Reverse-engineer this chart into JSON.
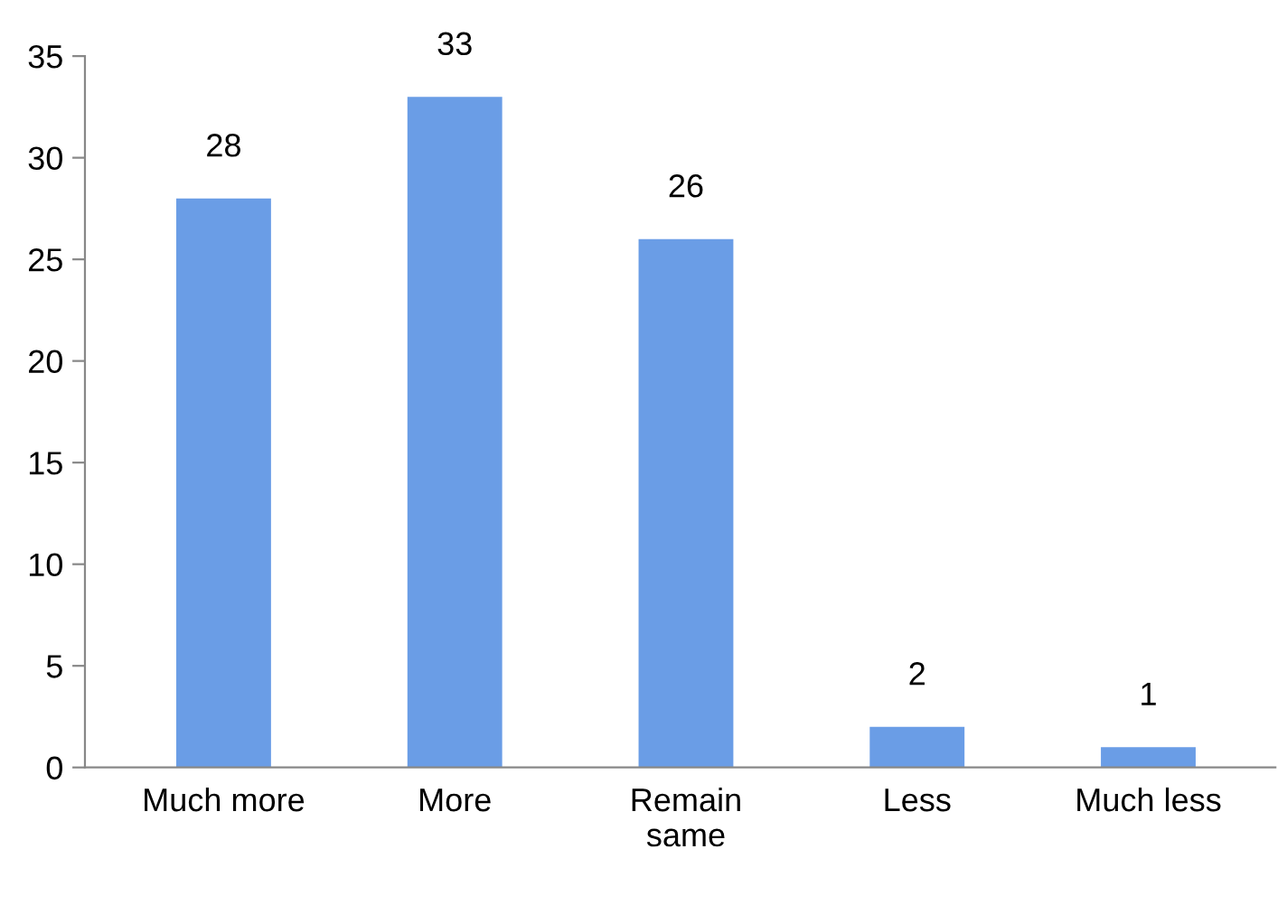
{
  "chart_data": {
    "type": "bar",
    "categories": [
      "Much more",
      "More",
      "Remain\nsame",
      "Less",
      "Much less"
    ],
    "values": [
      28,
      33,
      26,
      2,
      1
    ],
    "color": "#6a9de6",
    "ylim": [
      0,
      35
    ],
    "yticks": [
      0,
      5,
      10,
      15,
      20,
      25,
      30,
      35
    ],
    "data_labels": true,
    "grid": false,
    "legend": false
  }
}
